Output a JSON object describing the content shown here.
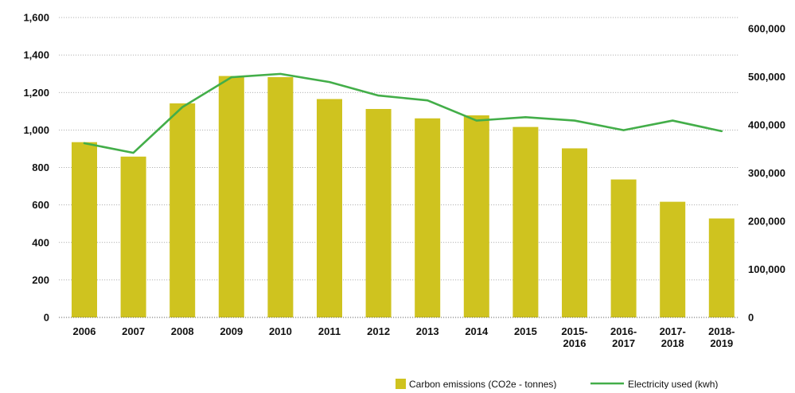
{
  "chart_data": {
    "type": "bar",
    "categories": [
      "2006",
      "2007",
      "2008",
      "2009",
      "2010",
      "2011",
      "2012",
      "2013",
      "2014",
      "2015",
      "2015-2016",
      "2016-2017",
      "2017-2018",
      "2018-2019"
    ],
    "category_lines": [
      [
        "2006"
      ],
      [
        "2007"
      ],
      [
        "2008"
      ],
      [
        "2009"
      ],
      [
        "2010"
      ],
      [
        "2011"
      ],
      [
        "2012"
      ],
      [
        "2013"
      ],
      [
        "2014"
      ],
      [
        "2015"
      ],
      [
        "2015-",
        "2016"
      ],
      [
        "2016-",
        "2017"
      ],
      [
        "2017-",
        "2018"
      ],
      [
        "2018-",
        "2019"
      ]
    ],
    "series": [
      {
        "name": "Carbon emissions (CO2e - tonnes)",
        "type": "bar",
        "axis": "left",
        "color": "#cfc31f",
        "values": [
          935,
          858,
          1142,
          1288,
          1282,
          1165,
          1112,
          1062,
          1078,
          1016,
          902,
          736,
          617,
          528
        ]
      },
      {
        "name": "Electricity used (kwh)",
        "type": "line",
        "axis": "right",
        "color": "#43ae49",
        "values": [
          362000,
          342000,
          437000,
          499000,
          506000,
          489000,
          461000,
          451000,
          409000,
          416000,
          409000,
          389000,
          409000,
          387000
        ]
      }
    ],
    "y_left": {
      "lim": [
        0,
        1600
      ],
      "ticks": [
        0,
        200,
        400,
        600,
        800,
        1000,
        1200,
        1400,
        1600
      ],
      "tick_labels": [
        "0",
        "200",
        "400",
        "600",
        "800",
        "1,000",
        "1,200",
        "1,400",
        "1,600"
      ]
    },
    "y_right": {
      "lim": [
        0,
        600000
      ],
      "ticks": [
        0,
        100000,
        200000,
        300000,
        400000,
        500000,
        600000
      ],
      "tick_labels": [
        "0",
        "100,000",
        "200,000",
        "300,000",
        "400,000",
        "500,000",
        "600,000"
      ]
    },
    "title": "",
    "xlabel": "",
    "ylabel": "",
    "grid": true,
    "legend_position": "bottom-right"
  }
}
